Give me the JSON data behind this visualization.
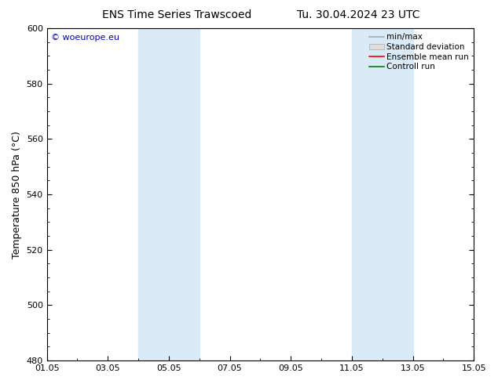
{
  "title_left": "ENS Time Series Trawscoed",
  "title_right": "Tu. 30.04.2024 23 UTC",
  "ylabel": "Temperature 850 hPa (°C)",
  "ylim": [
    480,
    600
  ],
  "yticks": [
    480,
    500,
    520,
    540,
    560,
    580,
    600
  ],
  "xlabel_ticks": [
    "01.05",
    "03.05",
    "05.05",
    "07.05",
    "09.05",
    "11.05",
    "13.05",
    "15.05"
  ],
  "xlabel_tick_positions": [
    0,
    2,
    4,
    6,
    8,
    10,
    12,
    14
  ],
  "x_start_day": 0,
  "x_end_day": 14,
  "shaded_bands": [
    {
      "x_start": 3.0,
      "x_end": 5.0
    },
    {
      "x_start": 10.0,
      "x_end": 12.0
    }
  ],
  "shaded_color": "#daeaf7",
  "watermark": "© woeurope.eu",
  "watermark_color": "#0000cc",
  "bg_color": "#ffffff",
  "plot_bg_color": "#ffffff",
  "tick_fontsize": 8,
  "label_fontsize": 9,
  "title_fontsize": 10
}
